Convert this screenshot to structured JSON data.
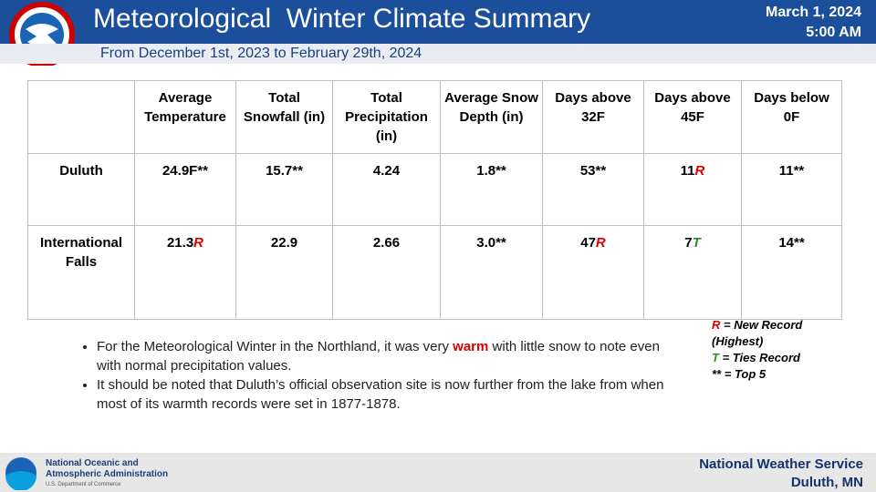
{
  "header": {
    "title": "Meteorological  Winter Climate Summary",
    "subtitle": "From December 1st, 2023 to February 29th, 2024",
    "date": "March 1, 2024",
    "time": "5:00 AM"
  },
  "flag_colors": {
    "R": "#e00000",
    "T": "#2e8b2e"
  },
  "table": {
    "header": [
      "",
      "Average Temperature",
      "Total Snowfall (in)",
      "Total Precipitation (in)",
      "Average Snow Depth (in)",
      "Days above 32F",
      "Days above 45F",
      "Days below 0F"
    ],
    "rows": [
      [
        "Duluth",
        "24.9F**",
        "15.7**",
        "4.24",
        "1.8**",
        "53**",
        {
          "text": "11",
          "flag": "R"
        },
        "11**"
      ],
      [
        "International Falls",
        {
          "text": "21.3",
          "flag": "R"
        },
        "22.9",
        "2.66",
        "3.0**",
        {
          "text": "47",
          "flag": "R"
        },
        {
          "text": "7",
          "flag": "T"
        },
        "14**"
      ]
    ]
  },
  "bullets": [
    [
      "For the Meteorological  Winter in the Northland,  it was very ",
      "warm",
      " with little snow to note even with normal precipitation  values."
    ],
    [
      "It should  be noted that Duluth’s official observation  site is now further from the lake from when  most of its warmth  records were set in 1877-1878."
    ]
  ],
  "legend": [
    {
      "symbol": "R",
      "text": " = New Record (Highest)"
    },
    {
      "symbol": "T",
      "text": " = Ties Record"
    },
    {
      "symbol": "**",
      "text": " = Top 5"
    }
  ],
  "footer": {
    "agency": [
      "National Oceanic and",
      "Atmospheric Administration"
    ],
    "department": "U.S. Department of Commerce",
    "office": "National Weather Service",
    "location": "Duluth,  MN"
  }
}
